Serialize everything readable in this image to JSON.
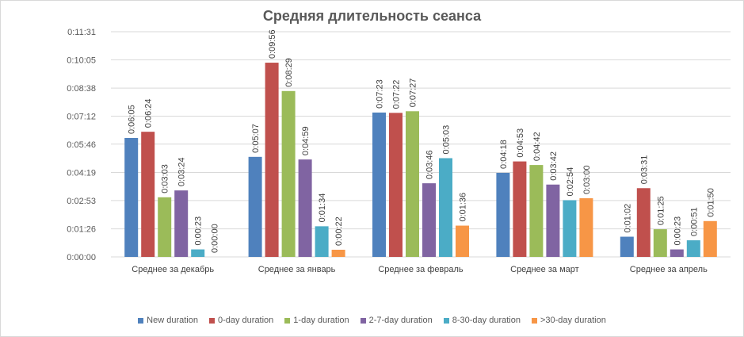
{
  "chart_data": {
    "type": "bar",
    "title": "Средняя длительность сеанса",
    "categories": [
      "Среднее за декабрь",
      "Среднее за январь",
      "Среднее за февраль",
      "Среднее за март",
      "Среднее за апрель"
    ],
    "y_ticks": [
      "0:00:00",
      "0:01:26",
      "0:02:53",
      "0:04:19",
      "0:05:46",
      "0:07:12",
      "0:08:38",
      "0:10:05",
      "0:11:31"
    ],
    "ylim": [
      "0:00:00",
      "0:11:31"
    ],
    "grid": true,
    "legend_position": "bottom",
    "series": [
      {
        "name": "New duration",
        "color": "#4f81bd",
        "values": [
          "0:06:05",
          "0:05:07",
          "0:07:23",
          "0:04:18",
          "0:01:02"
        ]
      },
      {
        "name": "0-day duration",
        "color": "#c0504d",
        "values": [
          "0:06:24",
          "0:09:56",
          "0:07:22",
          "0:04:53",
          "0:03:31"
        ]
      },
      {
        "name": "1-day duration",
        "color": "#9bbb59",
        "values": [
          "0:03:03",
          "0:08:29",
          "0:07:27",
          "0:04:42",
          "0:01:25"
        ]
      },
      {
        "name": "2-7-day duration",
        "color": "#8064a2",
        "values": [
          "0:03:24",
          "0:04:59",
          "0:03:46",
          "0:03:42",
          "0:00:23"
        ]
      },
      {
        "name": "8-30-day duration",
        "color": "#4bacc6",
        "values": [
          "0:00:23",
          "0:01:34",
          "0:05:03",
          "0:02:54",
          "0:00:51"
        ]
      },
      {
        "name": ">30-day duration",
        "color": "#f79646",
        "values": [
          "0:00:00",
          "0:00:22",
          "0:01:36",
          "0:03:00",
          "0:01:50"
        ]
      }
    ]
  }
}
